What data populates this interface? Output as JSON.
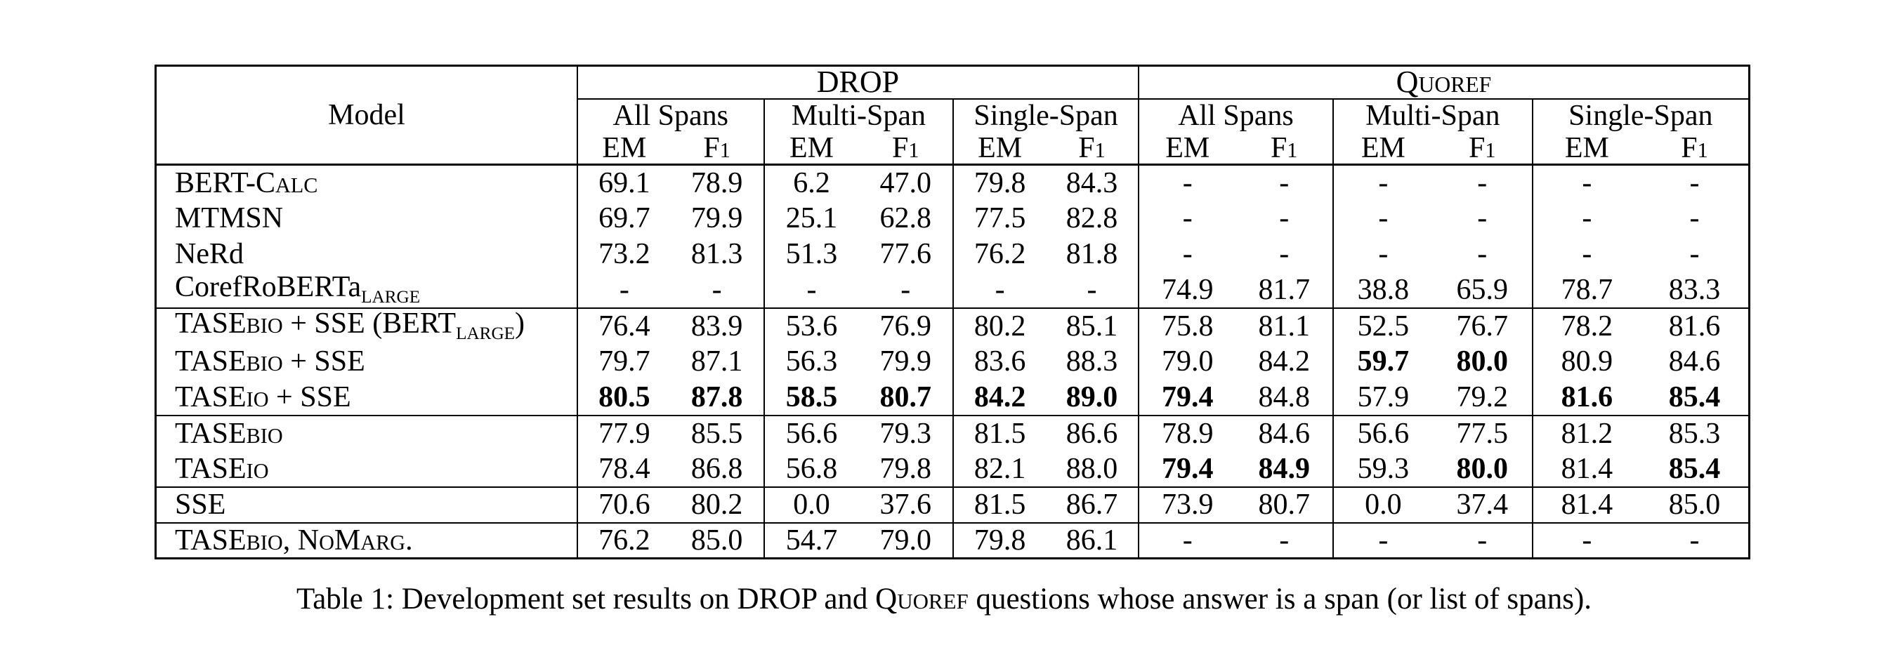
{
  "page": {
    "background": "#ffffff",
    "text_color": "#000000",
    "rule_color": "#000000"
  },
  "table": {
    "header": {
      "model_label": [
        {
          "t": "Model"
        }
      ],
      "datasets": [
        {
          "id": "drop",
          "segments": [
            {
              "t": "DROP"
            }
          ]
        },
        {
          "id": "quoref",
          "segments": [
            {
              "t": "Q"
            },
            {
              "t": "UOREF",
              "s": "sc"
            }
          ]
        }
      ],
      "span_groups": [
        "All Spans",
        "Multi-Span",
        "Single-Span"
      ],
      "metrics": [
        {
          "segments": [
            {
              "t": "EM"
            }
          ]
        },
        {
          "segments": [
            {
              "t": "F"
            },
            {
              "t": "1",
              "s": "f1"
            }
          ]
        }
      ]
    },
    "rows": [
      {
        "name": [
          {
            "t": "BERT-C"
          },
          {
            "t": "ALC",
            "s": "sc"
          }
        ],
        "values": [
          "69.1",
          "78.9",
          "6.2",
          "47.0",
          "79.8",
          "84.3",
          "-",
          "-",
          "-",
          "-",
          "-",
          "-"
        ],
        "bold": [],
        "sep_above": false
      },
      {
        "name": [
          {
            "t": "MTMSN"
          }
        ],
        "values": [
          "69.7",
          "79.9",
          "25.1",
          "62.8",
          "77.5",
          "82.8",
          "-",
          "-",
          "-",
          "-",
          "-",
          "-"
        ],
        "bold": [],
        "sep_above": false
      },
      {
        "name": [
          {
            "t": "NeRd"
          }
        ],
        "values": [
          "73.2",
          "81.3",
          "51.3",
          "77.6",
          "76.2",
          "81.8",
          "-",
          "-",
          "-",
          "-",
          "-",
          "-"
        ],
        "bold": [],
        "sep_above": false
      },
      {
        "name": [
          {
            "t": "CorefRoBERTa"
          },
          {
            "t": "LARGE",
            "s": "sub"
          }
        ],
        "values": [
          "-",
          "-",
          "-",
          "-",
          "-",
          "-",
          "74.9",
          "81.7",
          "38.8",
          "65.9",
          "78.7",
          "83.3"
        ],
        "bold": [],
        "sep_above": false
      },
      {
        "name": [
          {
            "t": "TASE"
          },
          {
            "t": "BIO",
            "s": "sc"
          },
          {
            "t": " + SSE (BERT"
          },
          {
            "t": "LARGE",
            "s": "sub"
          },
          {
            "t": ")"
          }
        ],
        "values": [
          "76.4",
          "83.9",
          "53.6",
          "76.9",
          "80.2",
          "85.1",
          "75.8",
          "81.1",
          "52.5",
          "76.7",
          "78.2",
          "81.6"
        ],
        "bold": [],
        "sep_above": true
      },
      {
        "name": [
          {
            "t": "TASE"
          },
          {
            "t": "BIO",
            "s": "sc"
          },
          {
            "t": " + SSE"
          }
        ],
        "values": [
          "79.7",
          "87.1",
          "56.3",
          "79.9",
          "83.6",
          "88.3",
          "79.0",
          "84.2",
          "59.7",
          "80.0",
          "80.9",
          "84.6"
        ],
        "bold": [
          8,
          9
        ],
        "sep_above": false
      },
      {
        "name": [
          {
            "t": "TASE"
          },
          {
            "t": "IO",
            "s": "sc"
          },
          {
            "t": " + SSE"
          }
        ],
        "values": [
          "80.5",
          "87.8",
          "58.5",
          "80.7",
          "84.2",
          "89.0",
          "79.4",
          "84.8",
          "57.9",
          "79.2",
          "81.6",
          "85.4"
        ],
        "bold": [
          0,
          1,
          2,
          3,
          4,
          5,
          6,
          10,
          11
        ],
        "sep_above": false
      },
      {
        "name": [
          {
            "t": "TASE"
          },
          {
            "t": "BIO",
            "s": "sc"
          }
        ],
        "values": [
          "77.9",
          "85.5",
          "56.6",
          "79.3",
          "81.5",
          "86.6",
          "78.9",
          "84.6",
          "56.6",
          "77.5",
          "81.2",
          "85.3"
        ],
        "bold": [],
        "sep_above": true
      },
      {
        "name": [
          {
            "t": "TASE"
          },
          {
            "t": "IO",
            "s": "sc"
          }
        ],
        "values": [
          "78.4",
          "86.8",
          "56.8",
          "79.8",
          "82.1",
          "88.0",
          "79.4",
          "84.9",
          "59.3",
          "80.0",
          "81.4",
          "85.4"
        ],
        "bold": [
          6,
          7,
          9,
          11
        ],
        "sep_above": false
      },
      {
        "name": [
          {
            "t": "SSE"
          }
        ],
        "values": [
          "70.6",
          "80.2",
          "0.0",
          "37.6",
          "81.5",
          "86.7",
          "73.9",
          "80.7",
          "0.0",
          "37.4",
          "81.4",
          "85.0"
        ],
        "bold": [],
        "sep_above": true
      },
      {
        "name": [
          {
            "t": "TASE"
          },
          {
            "t": "BIO",
            "s": "sc"
          },
          {
            "t": ", N"
          },
          {
            "t": "O",
            "s": "sc"
          },
          {
            "t": "M"
          },
          {
            "t": "ARG",
            "s": "sc"
          },
          {
            "t": "."
          }
        ],
        "values": [
          "76.2",
          "85.0",
          "54.7",
          "79.0",
          "79.8",
          "86.1",
          "-",
          "-",
          "-",
          "-",
          "-",
          "-"
        ],
        "bold": [],
        "sep_above": true
      }
    ]
  },
  "caption": {
    "segments": [
      {
        "t": "Table 1: Development set results on DROP and Q"
      },
      {
        "t": "UOREF",
        "s": "sc"
      },
      {
        "t": " questions whose answer is a span (or list of spans)."
      }
    ]
  }
}
